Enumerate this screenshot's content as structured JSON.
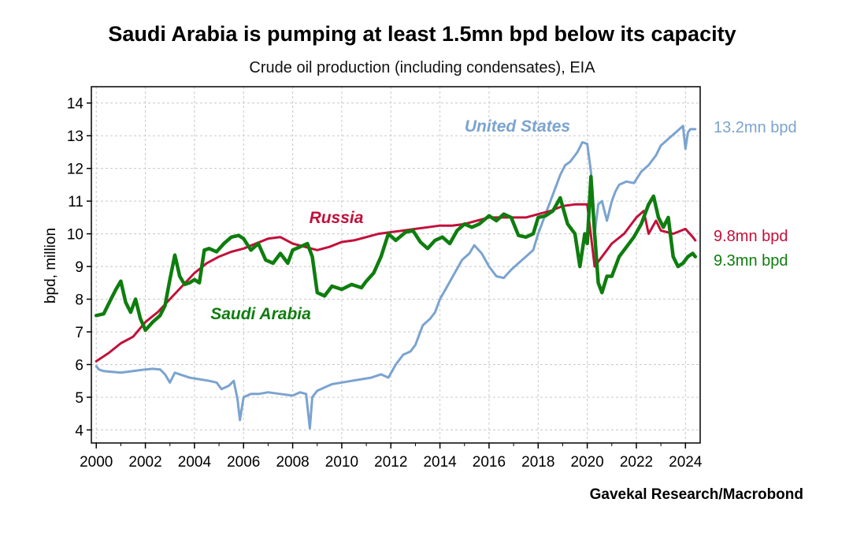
{
  "chart_data": {
    "type": "line",
    "title": "Saudi Arabia is pumping at least 1.5mn bpd below its capacity",
    "subtitle": "Crude oil production (including condensates), EIA",
    "ylabel": "bpd, million",
    "xlabel": "",
    "source": "Gavekal Research/Macrobond",
    "xlim": [
      1999.8,
      2024.6
    ],
    "ylim": [
      3.6,
      14.5
    ],
    "x_ticks": [
      "2000",
      "2002",
      "2004",
      "2006",
      "2008",
      "2010",
      "2012",
      "2014",
      "2016",
      "2018",
      "2020",
      "2022",
      "2024"
    ],
    "y_ticks": [
      "4",
      "5",
      "6",
      "7",
      "8",
      "9",
      "10",
      "11",
      "12",
      "13",
      "14"
    ],
    "grid": true,
    "series": [
      {
        "name": "United States",
        "label": "United States",
        "end_label": "13.2mn bpd",
        "color": "#7ba3cf",
        "x": [
          2000.0,
          2000.1,
          2000.3,
          2000.6,
          2001.0,
          2001.5,
          2002.0,
          2002.3,
          2002.6,
          2002.8,
          2003.0,
          2003.2,
          2003.4,
          2003.8,
          2004.2,
          2004.6,
          2004.9,
          2005.1,
          2005.4,
          2005.6,
          2005.75,
          2005.85,
          2006.0,
          2006.3,
          2006.6,
          2007.0,
          2007.5,
          2008.0,
          2008.3,
          2008.55,
          2008.7,
          2008.8,
          2009.0,
          2009.3,
          2009.6,
          2010.0,
          2010.4,
          2010.8,
          2011.2,
          2011.6,
          2011.9,
          2012.2,
          2012.5,
          2012.8,
          2013.0,
          2013.3,
          2013.6,
          2013.8,
          2014.0,
          2014.3,
          2014.6,
          2014.9,
          2015.2,
          2015.4,
          2015.7,
          2016.0,
          2016.3,
          2016.6,
          2016.9,
          2017.2,
          2017.5,
          2017.8,
          2018.0,
          2018.3,
          2018.6,
          2018.9,
          2019.1,
          2019.3,
          2019.6,
          2019.8,
          2020.0,
          2020.15,
          2020.3,
          2020.45,
          2020.6,
          2020.8,
          2021.0,
          2021.15,
          2021.3,
          2021.6,
          2021.9,
          2022.2,
          2022.5,
          2022.8,
          2023.0,
          2023.3,
          2023.6,
          2023.9,
          2024.0,
          2024.1,
          2024.2,
          2024.4
        ],
        "y": [
          5.95,
          5.85,
          5.8,
          5.78,
          5.75,
          5.8,
          5.85,
          5.87,
          5.85,
          5.7,
          5.45,
          5.75,
          5.7,
          5.6,
          5.55,
          5.5,
          5.45,
          5.25,
          5.35,
          5.5,
          4.95,
          4.3,
          5.0,
          5.1,
          5.1,
          5.15,
          5.1,
          5.05,
          5.15,
          5.1,
          4.05,
          5.0,
          5.2,
          5.3,
          5.4,
          5.45,
          5.5,
          5.55,
          5.6,
          5.7,
          5.6,
          6.0,
          6.3,
          6.4,
          6.6,
          7.2,
          7.4,
          7.6,
          8.0,
          8.4,
          8.8,
          9.2,
          9.4,
          9.65,
          9.4,
          9.0,
          8.7,
          8.65,
          8.9,
          9.1,
          9.3,
          9.5,
          10.0,
          10.6,
          11.2,
          11.8,
          12.1,
          12.2,
          12.5,
          12.8,
          12.75,
          11.9,
          10.0,
          10.9,
          11.0,
          10.4,
          11.0,
          11.3,
          11.5,
          11.6,
          11.55,
          11.9,
          12.1,
          12.4,
          12.7,
          12.9,
          13.1,
          13.3,
          12.6,
          13.1,
          13.2,
          13.2
        ]
      },
      {
        "name": "Russia",
        "label": "Russia",
        "end_label": "9.8mn bpd",
        "color": "#c2103a",
        "x": [
          2000.0,
          2000.5,
          2001.0,
          2001.5,
          2002.0,
          2002.5,
          2003.0,
          2003.5,
          2004.0,
          2004.5,
          2005.0,
          2005.5,
          2006.0,
          2006.5,
          2007.0,
          2007.5,
          2008.0,
          2008.5,
          2009.0,
          2009.5,
          2010.0,
          2010.5,
          2011.0,
          2011.5,
          2012.0,
          2012.5,
          2013.0,
          2013.5,
          2014.0,
          2014.5,
          2015.0,
          2015.5,
          2016.0,
          2016.5,
          2017.0,
          2017.5,
          2018.0,
          2018.5,
          2019.0,
          2019.5,
          2020.0,
          2020.3,
          2020.5,
          2020.8,
          2021.0,
          2021.5,
          2022.0,
          2022.3,
          2022.5,
          2022.8,
          2023.0,
          2023.5,
          2024.0,
          2024.3,
          2024.4
        ],
        "y": [
          6.1,
          6.35,
          6.65,
          6.85,
          7.3,
          7.6,
          8.0,
          8.4,
          8.8,
          9.1,
          9.3,
          9.45,
          9.55,
          9.7,
          9.85,
          9.9,
          9.7,
          9.6,
          9.5,
          9.6,
          9.75,
          9.8,
          9.9,
          10.0,
          10.05,
          10.1,
          10.15,
          10.2,
          10.25,
          10.25,
          10.3,
          10.4,
          10.5,
          10.5,
          10.5,
          10.5,
          10.6,
          10.7,
          10.85,
          10.9,
          10.9,
          9.0,
          9.2,
          9.5,
          9.7,
          10.0,
          10.5,
          10.7,
          10.0,
          10.4,
          10.1,
          10.0,
          10.15,
          9.9,
          9.8
        ]
      },
      {
        "name": "Saudi Arabia",
        "label": "Saudi Arabia",
        "end_label": "9.3mn bpd",
        "color": "#0e7d0e",
        "x": [
          2000.0,
          2000.3,
          2000.6,
          2000.8,
          2001.0,
          2001.2,
          2001.4,
          2001.6,
          2001.8,
          2002.0,
          2002.3,
          2002.6,
          2002.8,
          2003.0,
          2003.2,
          2003.4,
          2003.6,
          2003.8,
          2004.0,
          2004.2,
          2004.4,
          2004.6,
          2004.9,
          2005.2,
          2005.5,
          2005.8,
          2006.0,
          2006.3,
          2006.6,
          2006.9,
          2007.2,
          2007.5,
          2007.8,
          2008.0,
          2008.3,
          2008.6,
          2008.8,
          2009.0,
          2009.3,
          2009.6,
          2010.0,
          2010.4,
          2010.8,
          2011.0,
          2011.3,
          2011.6,
          2011.9,
          2012.2,
          2012.6,
          2012.9,
          2013.2,
          2013.5,
          2013.8,
          2014.1,
          2014.4,
          2014.7,
          2015.0,
          2015.3,
          2015.6,
          2016.0,
          2016.3,
          2016.6,
          2016.9,
          2017.2,
          2017.5,
          2017.8,
          2018.0,
          2018.3,
          2018.6,
          2018.9,
          2019.2,
          2019.5,
          2019.7,
          2019.9,
          2020.0,
          2020.15,
          2020.3,
          2020.45,
          2020.6,
          2020.8,
          2021.0,
          2021.3,
          2021.6,
          2021.9,
          2022.2,
          2022.5,
          2022.7,
          2022.9,
          2023.1,
          2023.3,
          2023.5,
          2023.7,
          2023.9,
          2024.1,
          2024.3,
          2024.4
        ],
        "y": [
          7.5,
          7.55,
          8.0,
          8.3,
          8.55,
          7.9,
          7.6,
          8.0,
          7.4,
          7.05,
          7.3,
          7.5,
          7.8,
          8.6,
          9.35,
          8.7,
          8.45,
          8.5,
          8.6,
          8.5,
          9.5,
          9.55,
          9.45,
          9.7,
          9.9,
          9.95,
          9.85,
          9.5,
          9.7,
          9.2,
          9.1,
          9.4,
          9.1,
          9.5,
          9.6,
          9.7,
          9.3,
          8.2,
          8.1,
          8.4,
          8.3,
          8.45,
          8.35,
          8.55,
          8.8,
          9.3,
          10.0,
          9.8,
          10.05,
          10.1,
          9.75,
          9.55,
          9.8,
          9.9,
          9.7,
          10.1,
          10.3,
          10.2,
          10.3,
          10.55,
          10.4,
          10.6,
          10.5,
          9.95,
          9.9,
          10.0,
          10.5,
          10.55,
          10.7,
          11.1,
          10.3,
          10.0,
          9.0,
          10.0,
          9.7,
          11.75,
          10.0,
          8.5,
          8.2,
          8.7,
          8.7,
          9.3,
          9.6,
          9.9,
          10.3,
          10.9,
          11.15,
          10.5,
          10.2,
          10.5,
          9.3,
          9.0,
          9.1,
          9.3,
          9.4,
          9.3
        ]
      }
    ]
  }
}
